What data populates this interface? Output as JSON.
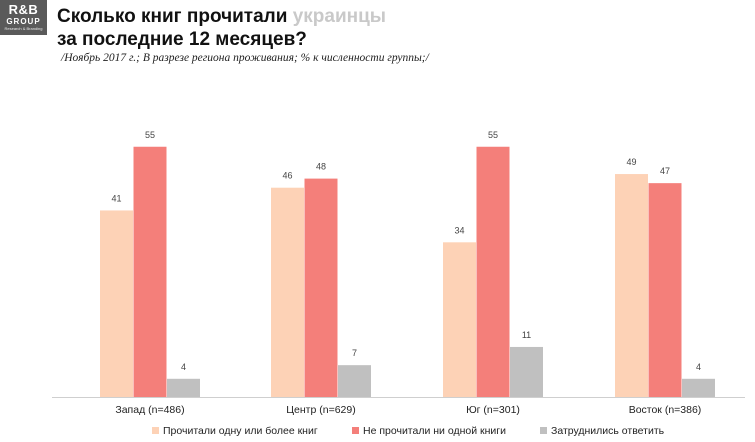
{
  "logo": {
    "brand": "R&B",
    "group": "GROUP",
    "sub": "Research & Branding"
  },
  "header": {
    "title_part1": "Сколько книг прочитали ",
    "title_highlight": "украинцы",
    "title_part2": "за последние 12 месяцев?",
    "subtitle": "/Ноябрь 2017 г.;  В разрезе региона проживания; % к численности группы;/"
  },
  "colors": {
    "series1": "#fdd2b6",
    "series2": "#f47f7a",
    "series3": "#c0c0c0"
  },
  "chart_data": {
    "type": "bar",
    "categories": [
      "Запад (n=486)",
      "Центр (n=629)",
      "Юг (n=301)",
      "Восток (n=386)"
    ],
    "series": [
      {
        "name": "Прочитали одну или более книг",
        "values": [
          41,
          46,
          34,
          49
        ]
      },
      {
        "name": "Не прочитали ни одной книги",
        "values": [
          55,
          48,
          55,
          47
        ]
      },
      {
        "name": "Затруднились ответить",
        "values": [
          4,
          7,
          11,
          4
        ]
      }
    ],
    "title": "Сколько книг прочитали украинцы за последние 12 месяцев?",
    "xlabel": "",
    "ylabel": "",
    "ylim": [
      0,
      60
    ],
    "grid": false,
    "legend": "bottom"
  }
}
